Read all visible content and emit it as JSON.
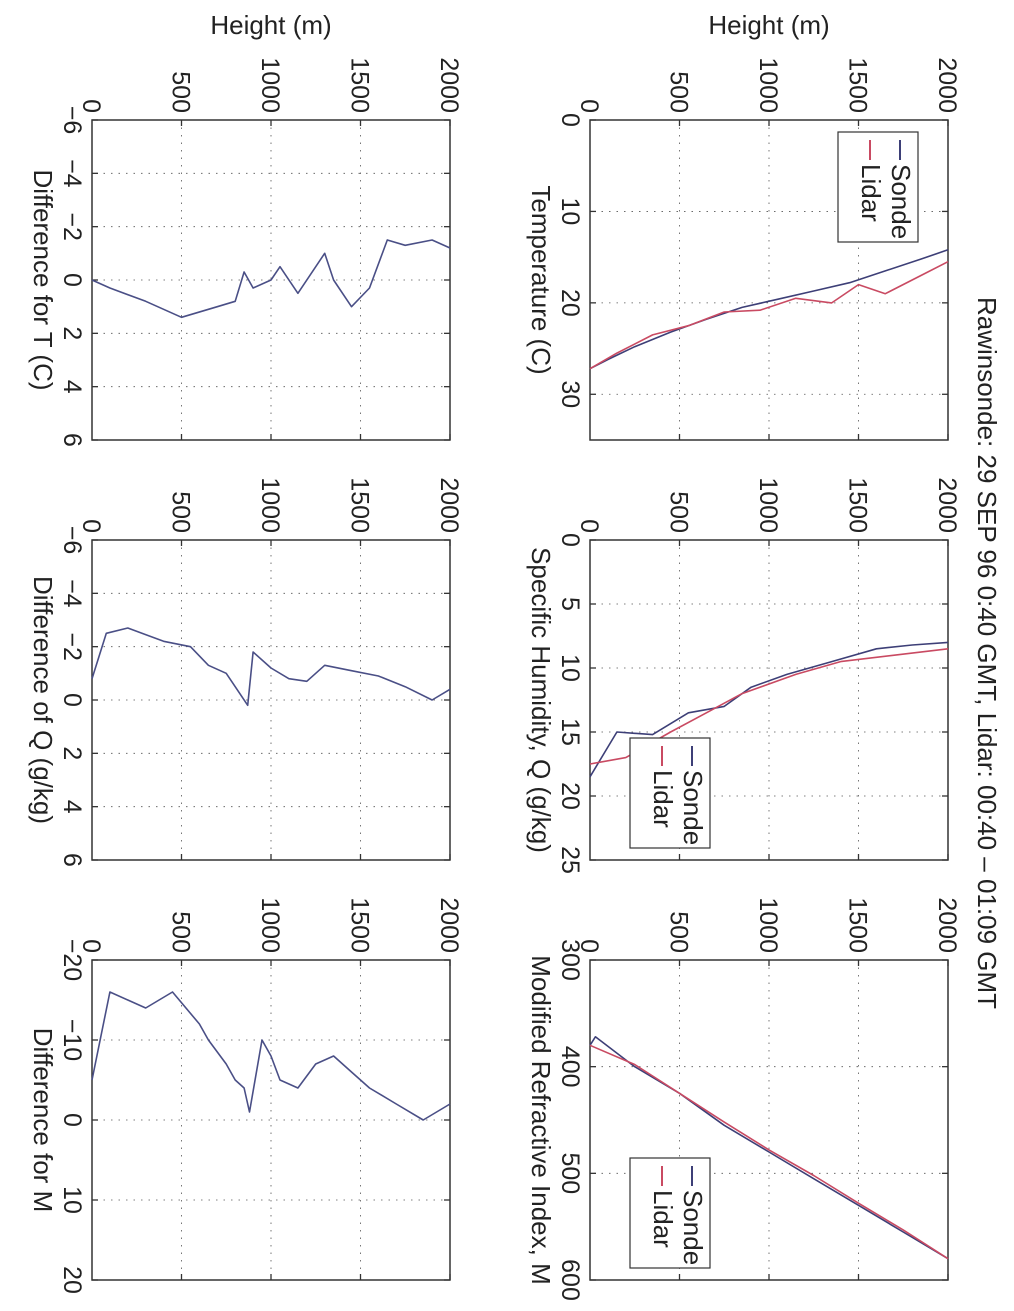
{
  "figure_title": "Rawinsonde: 29 SEP 96  0:40 GMT,  Lidar:  00:40 – 01:09 GMT",
  "colors": {
    "sonde": "#3d3f77",
    "lidar": "#c94a62",
    "diff": "#4a4f86",
    "axis": "#333333"
  },
  "chart_data": [
    {
      "type": "line",
      "xlabel": "Temperature (C)",
      "ylabel": "Height (m)",
      "xlim": [
        0,
        35
      ],
      "ylim": [
        0,
        2000
      ],
      "xticks": [
        "0",
        "10",
        "20",
        "30"
      ],
      "yticks": [
        "500",
        "1000",
        "1500",
        "2000"
      ],
      "grid": true,
      "legend": "top-left",
      "series": [
        {
          "name": "Sonde",
          "x": [
            27.2,
            26.2,
            24.8,
            23.2,
            21.8,
            20.5,
            19.6,
            18.7,
            17.8,
            16.5,
            15.2,
            14.2
          ],
          "y": [
            0,
            100,
            250,
            450,
            650,
            850,
            1050,
            1250,
            1450,
            1650,
            1850,
            2000
          ]
        },
        {
          "name": "Lidar",
          "x": [
            27.2,
            25.5,
            23.5,
            22.5,
            21.0,
            20.8,
            19.5,
            20.0,
            18.0,
            19.0,
            17.0,
            15.5
          ],
          "y": [
            0,
            150,
            350,
            550,
            750,
            950,
            1150,
            1350,
            1500,
            1650,
            1850,
            2000
          ]
        }
      ]
    },
    {
      "type": "line",
      "xlabel": "Specific Humidity, Q (g/kg)",
      "ylabel": "",
      "xlim": [
        0,
        25
      ],
      "ylim": [
        0,
        2000
      ],
      "xticks": [
        "0",
        "5",
        "10",
        "15",
        "20",
        "25"
      ],
      "yticks": [
        "500",
        "1000",
        "1500",
        "2000"
      ],
      "grid": true,
      "legend": "bottom-right",
      "series": [
        {
          "name": "Sonde",
          "x": [
            18.5,
            15.0,
            15.2,
            13.5,
            13.0,
            11.5,
            10.5,
            9.5,
            8.5,
            8.2,
            8.0
          ],
          "y": [
            0,
            150,
            350,
            550,
            750,
            900,
            1100,
            1350,
            1600,
            1800,
            2000
          ]
        },
        {
          "name": "Lidar",
          "x": [
            17.5,
            17.0,
            15.0,
            13.5,
            12.0,
            10.5,
            9.5,
            9.0,
            8.5
          ],
          "y": [
            0,
            200,
            450,
            650,
            850,
            1150,
            1400,
            1700,
            2000
          ]
        }
      ]
    },
    {
      "type": "line",
      "xlabel": "Modified Refractive Index, M",
      "ylabel": "",
      "xlim": [
        300,
        600
      ],
      "ylim": [
        0,
        2000
      ],
      "xticks": [
        "300",
        "400",
        "500",
        "600"
      ],
      "yticks": [
        "500",
        "1000",
        "1500",
        "2000"
      ],
      "grid": true,
      "legend": "bottom-right",
      "series": [
        {
          "name": "Sonde",
          "x": [
            380,
            372,
            400,
            425,
            455,
            480,
            505,
            530,
            555,
            580
          ],
          "y": [
            0,
            30,
            250,
            500,
            750,
            1000,
            1250,
            1500,
            1750,
            2000
          ]
        },
        {
          "name": "Lidar",
          "x": [
            380,
            398,
            425,
            452,
            478,
            502,
            528,
            553,
            580
          ],
          "y": [
            0,
            250,
            500,
            750,
            1000,
            1250,
            1500,
            1750,
            2000
          ]
        }
      ]
    },
    {
      "type": "line",
      "xlabel": "Difference for T (C)",
      "ylabel": "Height (m)",
      "xlim": [
        -6,
        6
      ],
      "ylim": [
        0,
        2000
      ],
      "xticks": [
        "−6",
        "−4",
        "−2",
        "0",
        "2",
        "4",
        "6"
      ],
      "yticks": [
        "500",
        "1000",
        "1500",
        "2000"
      ],
      "grid": true,
      "series": [
        {
          "name": "",
          "x": [
            0.0,
            0.3,
            0.8,
            1.4,
            1.0,
            0.8,
            -0.3,
            0.3,
            0.0,
            -0.5,
            0.5,
            -1.0,
            0.0,
            1.0,
            0.3,
            -1.5,
            -1.3,
            -1.5,
            -1.2
          ],
          "y": [
            0,
            100,
            300,
            500,
            700,
            800,
            850,
            900,
            1000,
            1050,
            1150,
            1300,
            1350,
            1450,
            1550,
            1650,
            1750,
            1900,
            2000
          ]
        }
      ]
    },
    {
      "type": "line",
      "xlabel": "Difference of Q (g/kg)",
      "ylabel": "",
      "xlim": [
        -6,
        6
      ],
      "ylim": [
        0,
        2000
      ],
      "xticks": [
        "−6",
        "−4",
        "−2",
        "0",
        "2",
        "4",
        "6"
      ],
      "yticks": [
        "500",
        "1000",
        "1500",
        "2000"
      ],
      "grid": true,
      "series": [
        {
          "name": "",
          "x": [
            -0.8,
            -2.5,
            -2.7,
            -2.2,
            -2.0,
            -1.3,
            -1.0,
            -0.5,
            0.2,
            -1.8,
            -1.2,
            -0.8,
            -0.7,
            -1.3,
            -1.1,
            -0.9,
            -0.5,
            0.0,
            -0.4
          ],
          "y": [
            0,
            80,
            200,
            400,
            550,
            650,
            750,
            800,
            870,
            900,
            1000,
            1100,
            1200,
            1300,
            1450,
            1600,
            1750,
            1900,
            2000
          ]
        }
      ]
    },
    {
      "type": "line",
      "xlabel": "Difference for M",
      "ylabel": "",
      "xlim": [
        -20,
        20
      ],
      "ylim": [
        0,
        2000
      ],
      "xticks": [
        "−20",
        "−10",
        "0",
        "10",
        "20"
      ],
      "yticks": [
        "500",
        "1000",
        "1500",
        "2000"
      ],
      "grid": true,
      "series": [
        {
          "name": "",
          "x": [
            -5,
            -16,
            -15,
            -14,
            -16,
            -12,
            -10,
            -7,
            -5,
            -4,
            -1,
            -10,
            -8,
            -5,
            -4,
            -7,
            -8,
            -6,
            -4,
            -2,
            0,
            -2
          ],
          "y": [
            0,
            100,
            200,
            300,
            450,
            600,
            650,
            750,
            800,
            850,
            880,
            950,
            1000,
            1050,
            1150,
            1250,
            1350,
            1450,
            1550,
            1700,
            1850,
            2000
          ]
        }
      ]
    }
  ]
}
